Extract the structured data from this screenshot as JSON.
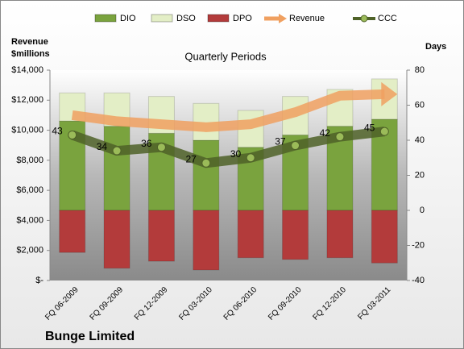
{
  "chart_data": {
    "type": "bar-line-combo",
    "title": "Bunge Limited",
    "subtitle": "Quarterly Periods",
    "y_label": "Revenue\n$millions",
    "y2_label": "Days",
    "categories": [
      "FQ 06-2009",
      "FQ 09-2009",
      "FQ 12-2009",
      "FQ 03-2010",
      "FQ 06-2010",
      "FQ 09-2010",
      "FQ 12-2010",
      "FQ 03-2011"
    ],
    "ylim": [
      0,
      14000
    ],
    "yticks": [
      {
        "value": 0,
        "label": "$-"
      },
      {
        "value": 2000,
        "label": "$2,000"
      },
      {
        "value": 4000,
        "label": "$4,000"
      },
      {
        "value": 6000,
        "label": "$6,000"
      },
      {
        "value": 8000,
        "label": "$8,000"
      },
      {
        "value": 10000,
        "label": "$10,000"
      },
      {
        "value": 12000,
        "label": "$12,000"
      },
      {
        "value": 14000,
        "label": "$14,000"
      }
    ],
    "y2lim": [
      -40,
      80
    ],
    "y2ticks": [
      -40,
      -20,
      0,
      20,
      40,
      60,
      80
    ],
    "series": [
      {
        "name": "DIO",
        "kind": "bar",
        "axis": "y2",
        "color": "#7aa33e",
        "values": [
          51,
          48,
          44,
          40,
          36,
          43,
          48,
          52
        ]
      },
      {
        "name": "DSO",
        "kind": "bar",
        "axis": "y2",
        "color": "#e3eec6",
        "values": [
          16,
          19,
          21,
          21,
          21,
          22,
          21,
          23
        ]
      },
      {
        "name": "DPO",
        "kind": "bar",
        "axis": "y2",
        "color": "#b33b3b",
        "values": [
          -24,
          -33,
          -29,
          -34,
          -27,
          -28,
          -27,
          -30
        ]
      },
      {
        "name": "Revenue",
        "kind": "arrow",
        "axis": "y",
        "color": "#f0a060",
        "values": [
          11000,
          10600,
          10400,
          10200,
          10400,
          11200,
          12300,
          12400
        ]
      },
      {
        "name": "CCC",
        "kind": "line",
        "axis": "y2",
        "color": "#4f6228",
        "values": [
          43,
          34,
          36,
          27,
          30,
          37,
          42,
          45
        ]
      }
    ]
  }
}
